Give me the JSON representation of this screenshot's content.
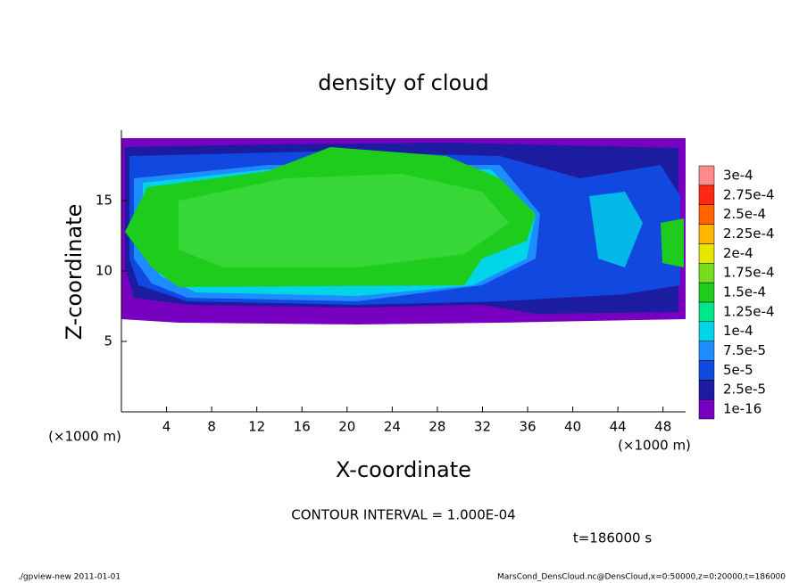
{
  "chart_data": {
    "type": "contour",
    "title": "density of cloud",
    "x_label": "X-coordinate",
    "y_label": "Z-coordinate",
    "x_unit": "(×1000 m)",
    "y_unit": "(×1000 m)",
    "xlim": [
      0,
      50
    ],
    "xticks": [
      4,
      8,
      12,
      16,
      20,
      24,
      28,
      32,
      36,
      40,
      44,
      48
    ],
    "ylim": [
      0,
      20
    ],
    "yticks": [
      5,
      10,
      15
    ],
    "colorbar": {
      "levels": [
        {
          "value": 1e-16,
          "label": "1e-16"
        },
        {
          "value": 2.5e-05,
          "label": "2.5e-5"
        },
        {
          "value": 5e-05,
          "label": "5e-5"
        },
        {
          "value": 7.5e-05,
          "label": "7.5e-5"
        },
        {
          "value": 0.0001,
          "label": "1e-4"
        },
        {
          "value": 0.000125,
          "label": "1.25e-4"
        },
        {
          "value": 0.00015,
          "label": "1.5e-4"
        },
        {
          "value": 0.000175,
          "label": "1.75e-4"
        },
        {
          "value": 0.0002,
          "label": "2e-4"
        },
        {
          "value": 0.000225,
          "label": "2.25e-4"
        },
        {
          "value": 0.00025,
          "label": "2.5e-4"
        },
        {
          "value": 0.000275,
          "label": "2.75e-4"
        },
        {
          "value": 0.0003,
          "label": "3e-4"
        }
      ],
      "colors": [
        "#7800c0",
        "#1c1ca0",
        "#1048e0",
        "#1c8cff",
        "#00d4e8",
        "#00e68c",
        "#1ecc1e",
        "#78dc1e",
        "#e6e600",
        "#ffb400",
        "#ff6400",
        "#ff2814",
        "#ff8c8c"
      ]
    },
    "note": "CONTOUR INTERVAL = 1.000E-04",
    "time": "t=186000 s",
    "footer_left": "./gpview-new  2011-01-01",
    "footer_right": "MarsCond_DensCloud.nc@DensCloud,x=0:50000,z=0:20000,t=186000"
  }
}
